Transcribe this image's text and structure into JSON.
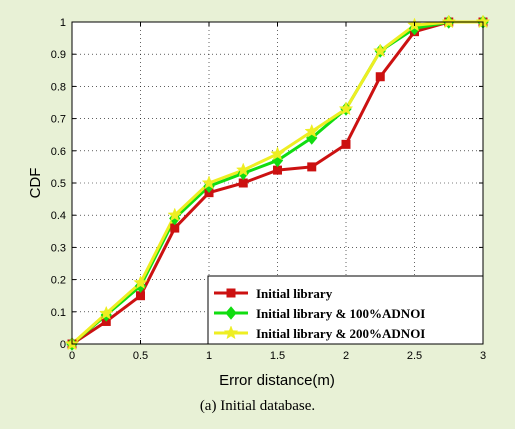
{
  "caption": "(a) Initial database.",
  "chart_data": {
    "type": "line",
    "xlabel": "Error distance(m)",
    "ylabel": "CDF",
    "xlim": [
      0,
      3
    ],
    "ylim": [
      0,
      1
    ],
    "xticks": [
      0,
      0.5,
      1,
      1.5,
      2,
      2.5,
      3
    ],
    "yticks": [
      0,
      0.1,
      0.2,
      0.3,
      0.4,
      0.5,
      0.6,
      0.7,
      0.8,
      0.9,
      1
    ],
    "grid": true,
    "legend_position": "bottom-right",
    "x": [
      0,
      0.25,
      0.5,
      0.75,
      1,
      1.25,
      1.5,
      1.75,
      2,
      2.25,
      2.5,
      2.75,
      3
    ],
    "series": [
      {
        "name": "Initial library",
        "color": "#cc1111",
        "marker": "square",
        "values": [
          0,
          0.07,
          0.15,
          0.36,
          0.47,
          0.5,
          0.54,
          0.55,
          0.62,
          0.83,
          0.97,
          1.0,
          1.0
        ]
      },
      {
        "name": "Initial library & 100%ADNOI",
        "color": "#11dd11",
        "marker": "diamond",
        "values": [
          0,
          0.09,
          0.18,
          0.39,
          0.49,
          0.53,
          0.57,
          0.64,
          0.73,
          0.91,
          0.98,
          1.0,
          1.0
        ]
      },
      {
        "name": "Initial library & 200%ADNOI",
        "color": "#eeee22",
        "marker": "star",
        "values": [
          0,
          0.095,
          0.19,
          0.4,
          0.5,
          0.54,
          0.59,
          0.66,
          0.73,
          0.91,
          0.99,
          1.0,
          1.0
        ]
      }
    ]
  }
}
